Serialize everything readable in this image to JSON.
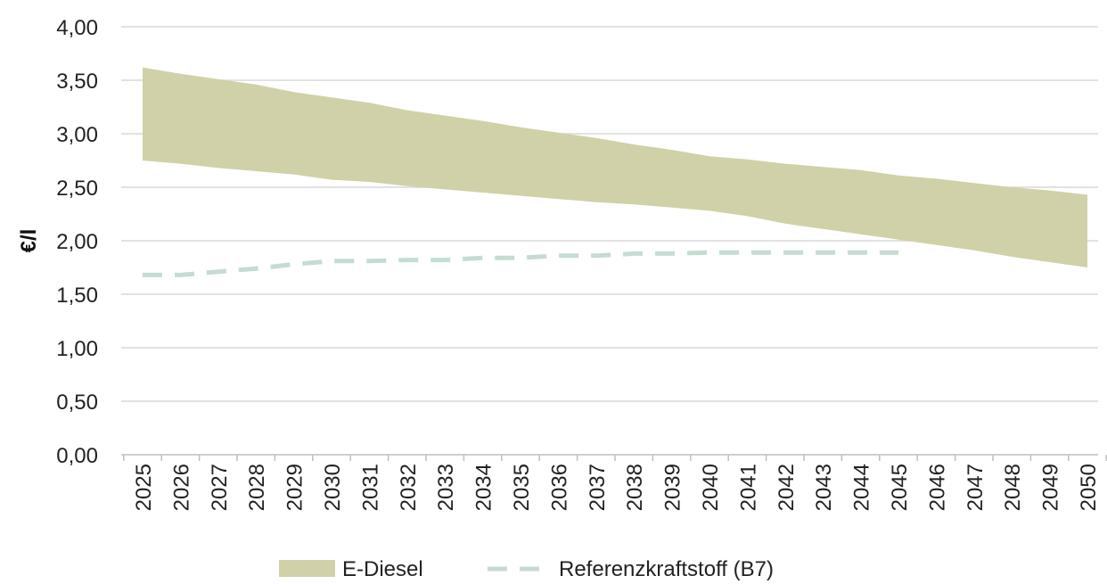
{
  "chart_data": {
    "type": "area",
    "ylabel": "€/l",
    "xlabel": "",
    "title": "",
    "ylim": [
      0,
      4
    ],
    "y_ticks": [
      "0,00",
      "0,50",
      "1,00",
      "1,50",
      "2,00",
      "2,50",
      "3,00",
      "3,50",
      "4,00"
    ],
    "y_tick_values": [
      0,
      0.5,
      1,
      1.5,
      2,
      2.5,
      3,
      3.5,
      4
    ],
    "categories": [
      "2025",
      "2026",
      "2027",
      "2028",
      "2029",
      "2030",
      "2031",
      "2032",
      "2033",
      "2034",
      "2035",
      "2036",
      "2037",
      "2038",
      "2039",
      "2040",
      "2041",
      "2042",
      "2043",
      "2044",
      "2045",
      "2046",
      "2047",
      "2048",
      "2049",
      "2050"
    ],
    "grid": "horizontal",
    "legend_position": "bottom",
    "series": [
      {
        "name": "E-Diesel",
        "kind": "band",
        "color": "#d0d1a9",
        "upper": [
          3.62,
          3.56,
          3.51,
          3.46,
          3.39,
          3.34,
          3.29,
          3.22,
          3.17,
          3.12,
          3.06,
          3.01,
          2.96,
          2.9,
          2.85,
          2.79,
          2.76,
          2.72,
          2.69,
          2.66,
          2.61,
          2.58,
          2.54,
          2.5,
          2.47,
          2.43
        ],
        "lower": [
          2.75,
          2.72,
          2.68,
          2.65,
          2.62,
          2.57,
          2.55,
          2.51,
          2.48,
          2.45,
          2.42,
          2.39,
          2.36,
          2.34,
          2.31,
          2.28,
          2.23,
          2.16,
          2.11,
          2.06,
          2.01,
          1.96,
          1.91,
          1.85,
          1.8,
          1.75
        ]
      },
      {
        "name": "Referenzkraftstoff (B7)",
        "kind": "dashed-line",
        "color": "#c5dcd1",
        "values": [
          1.68,
          1.68,
          1.71,
          1.74,
          1.78,
          1.81,
          1.81,
          1.82,
          1.82,
          1.84,
          1.84,
          1.86,
          1.86,
          1.88,
          1.88,
          1.89,
          1.89,
          1.89,
          1.89,
          1.89,
          1.89,
          null,
          null,
          null,
          null,
          null
        ]
      }
    ]
  }
}
